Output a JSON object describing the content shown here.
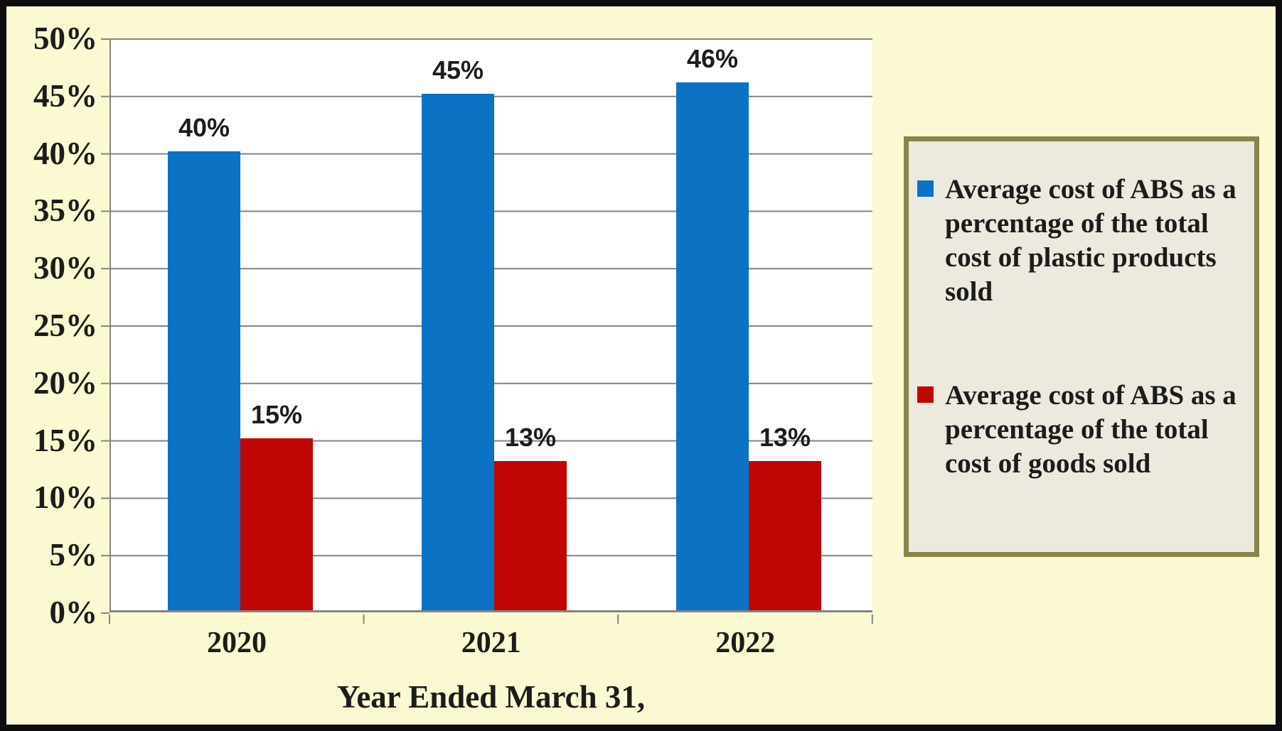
{
  "chart_data": {
    "type": "bar",
    "categories": [
      "2020",
      "2021",
      "2022"
    ],
    "series": [
      {
        "name": "Average cost of ABS as a percentage of the total cost of plastic products sold",
        "color": "#0B72C4",
        "values": [
          40,
          45,
          46
        ],
        "labels": [
          "40%",
          "45%",
          "46%"
        ]
      },
      {
        "name": "Average cost of ABS as a percentage of the total cost of goods sold",
        "color": "#C00505",
        "values": [
          15,
          13,
          13
        ],
        "labels": [
          "15%",
          "13%",
          "13%"
        ]
      }
    ],
    "title": "",
    "xlabel": "Year Ended March 31,",
    "ylabel": "",
    "ylim": [
      0,
      50
    ],
    "ytick_step": 5,
    "yticks": [
      "50%",
      "45%",
      "40%",
      "35%",
      "30%",
      "25%",
      "20%",
      "15%",
      "10%",
      "5%",
      "0%"
    ],
    "grid": "horizontal",
    "legend_position": "right"
  },
  "colors": {
    "background": "#FAF9D2",
    "plot_background": "#FFFFFF",
    "gridline": "#848484",
    "outer_border": "#0D0D0D",
    "legend_fill": "#ECEADE",
    "legend_border": "#8A8449",
    "text": "#1C1C1C",
    "series_blue": "#0B72C4",
    "series_red": "#C00505"
  },
  "legend": {
    "entries": [
      {
        "marker": "blue-square",
        "text": "Average cost of ABS as a\npercentage of the total\ncost of plastic products\nsold"
      },
      {
        "marker": "red-square",
        "text": "Average cost of ABS as a\npercentage of the total\ncost of goods sold"
      }
    ]
  }
}
